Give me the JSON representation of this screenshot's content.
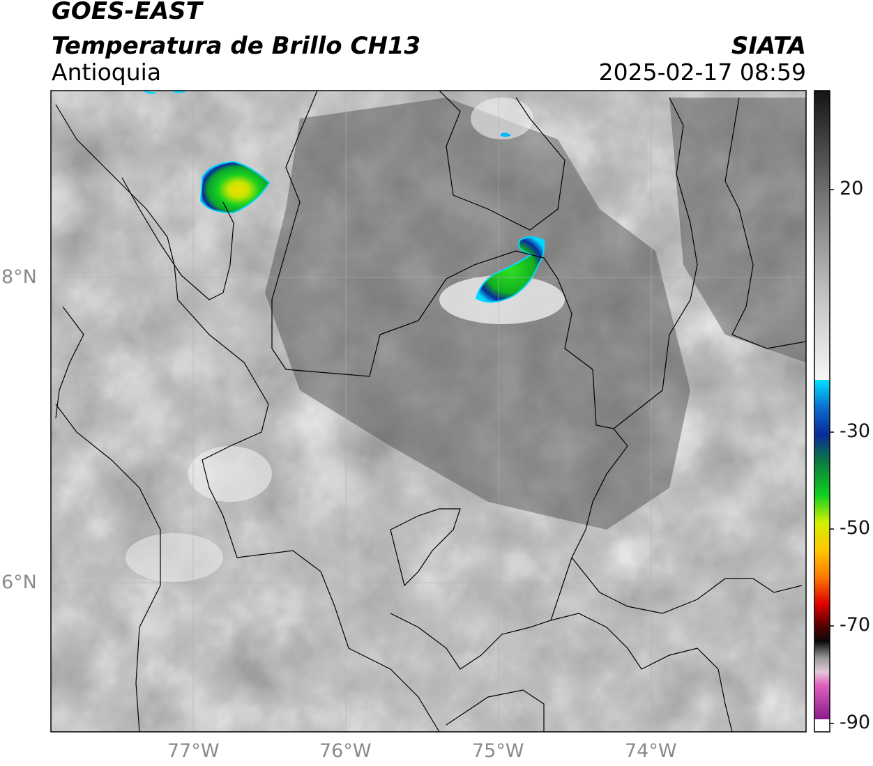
{
  "header": {
    "satellite": "GOES-EAST",
    "product": "Temperatura de Brillo CH13",
    "region": "Antioquia",
    "organization": "SIATA",
    "timestamp": "2025-02-17 08:59"
  },
  "axes": {
    "lat_labels": [
      "8°N",
      "6°N"
    ],
    "lon_labels": [
      "77°W",
      "76°W",
      "75°W",
      "74°W"
    ]
  },
  "colorbar": {
    "ticks": [
      "20",
      "-30",
      "-50",
      "-70",
      "-90"
    ],
    "tick_values": [
      20,
      -30,
      -50,
      -70,
      -90
    ],
    "colors": {
      "grayscale_top": "#141414",
      "grayscale_bottom": "#f4f4f4",
      "cyan": "#00e0ff",
      "blue": "#0a2a9a",
      "green": "#10c020",
      "yellow": "#e8f000",
      "orange": "#ff9000",
      "red": "#e00000",
      "dark": "#111111",
      "magenta": "#9a2090"
    }
  }
}
